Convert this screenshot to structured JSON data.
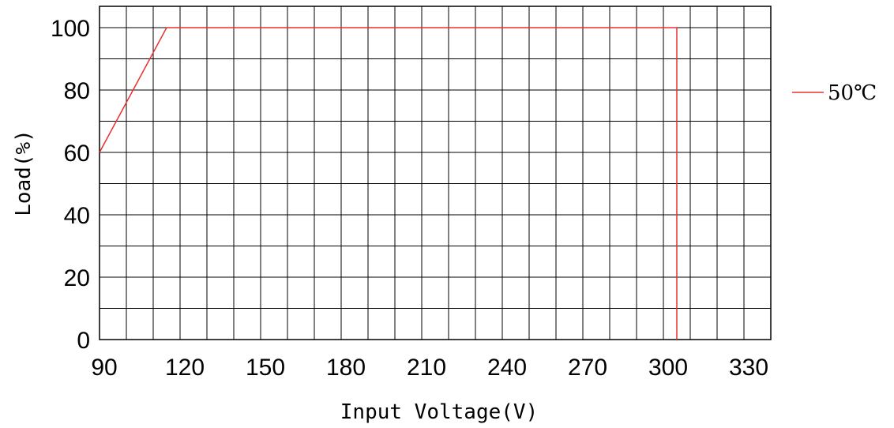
{
  "chart_data": {
    "type": "line",
    "xlabel": "Input Voltage(V)",
    "ylabel": "Load(%)",
    "xlim": [
      90,
      340
    ],
    "ylim": [
      0,
      100
    ],
    "x_ticks": [
      "90",
      "120",
      "150",
      "180",
      "210",
      "240",
      "270",
      "300",
      "330"
    ],
    "y_ticks": [
      "0",
      "20",
      "40",
      "60",
      "80",
      "100"
    ],
    "grid": true,
    "legend_position": "right",
    "series": [
      {
        "name": "50℃",
        "color": "#e8312f",
        "points": [
          [
            90,
            60
          ],
          [
            115,
            100
          ],
          [
            305,
            100
          ],
          [
            305,
            0
          ]
        ]
      }
    ]
  }
}
